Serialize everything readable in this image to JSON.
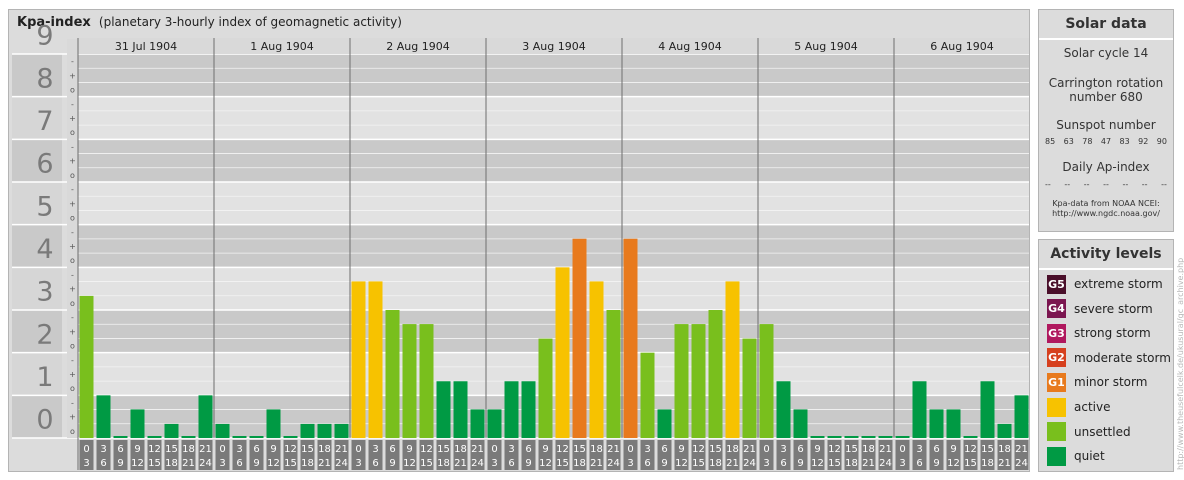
{
  "title": "Kpa-index",
  "subtitle": "(planetary 3-hourly index of geomagnetic activity)",
  "chart_data": {
    "type": "bar",
    "title": "Kpa-index",
    "subtitle": "(planetary 3-hourly index of geomagnetic activity)",
    "ylim": [
      0,
      9
    ],
    "y_ticks": [
      "0",
      "1",
      "2",
      "3",
      "4",
      "5",
      "6",
      "7",
      "8",
      "9"
    ],
    "sub_ticks": [
      "o",
      "+",
      "-"
    ],
    "days": [
      "31 Jul 1904",
      "1 Aug 1904",
      "2 Aug 1904",
      "3 Aug 1904",
      "4 Aug 1904",
      "5 Aug 1904",
      "6 Aug 1904"
    ],
    "interval_start_labels": [
      "0",
      "3",
      "6",
      "9",
      "12",
      "15",
      "18",
      "21"
    ],
    "interval_end_labels": [
      "3",
      "6",
      "9",
      "12",
      "15",
      "18",
      "21",
      "24"
    ],
    "values": [
      [
        3.33,
        1.0,
        0.0,
        0.67,
        0.0,
        0.33,
        0.0,
        1.0
      ],
      [
        0.33,
        0.0,
        0.0,
        0.67,
        0.0,
        0.33,
        0.33,
        0.33
      ],
      [
        3.67,
        3.67,
        3.0,
        2.67,
        2.67,
        1.33,
        1.33,
        0.67
      ],
      [
        0.67,
        1.33,
        1.33,
        2.33,
        4.0,
        4.67,
        3.67,
        3.0
      ],
      [
        4.67,
        2.0,
        0.67,
        2.67,
        2.67,
        3.0,
        3.67,
        2.33
      ],
      [
        2.67,
        1.33,
        0.67,
        0.0,
        0.0,
        0.0,
        0.0,
        0.0
      ],
      [
        0.0,
        1.33,
        0.67,
        0.67,
        0.0,
        1.33,
        0.33,
        1.0
      ]
    ],
    "colors": {
      "quiet": "#009a44",
      "unsettled": "#79bf1d",
      "active": "#f7c200",
      "minor": "#e87a1d"
    }
  },
  "solar": {
    "title": "Solar data",
    "cycle": "Solar cycle 14",
    "rotation_line1": "Carrington rotation",
    "rotation_line2": "number 680",
    "sunspot_title": "Sunspot number",
    "sunspots": [
      "85",
      "63",
      "78",
      "47",
      "83",
      "92",
      "90"
    ],
    "ap_title": "Daily Ap-index",
    "ap_values": [
      "--",
      "--",
      "--",
      "--",
      "--",
      "--",
      "--"
    ],
    "source_line1": "Kpa-data from NOAA NCEI:",
    "source_line2": "http://www.ngdc.noaa.gov/"
  },
  "levels": {
    "title": "Activity levels",
    "items": [
      {
        "code": "G5",
        "label": "extreme storm",
        "color": "#4a0f2a"
      },
      {
        "code": "G4",
        "label": "severe storm",
        "color": "#7b1650"
      },
      {
        "code": "G3",
        "label": "strong storm",
        "color": "#b0185e"
      },
      {
        "code": "G2",
        "label": "moderate storm",
        "color": "#d6401e"
      },
      {
        "code": "G1",
        "label": "minor storm",
        "color": "#e87a1d"
      },
      {
        "code": "",
        "label": "active",
        "color": "#f7c200"
      },
      {
        "code": "",
        "label": "unsettled",
        "color": "#79bf1d"
      },
      {
        "code": "",
        "label": "quiet",
        "color": "#009a44"
      }
    ]
  },
  "credit": "http://www.theusefulcelk.de/ukusural/gc_archive.php"
}
